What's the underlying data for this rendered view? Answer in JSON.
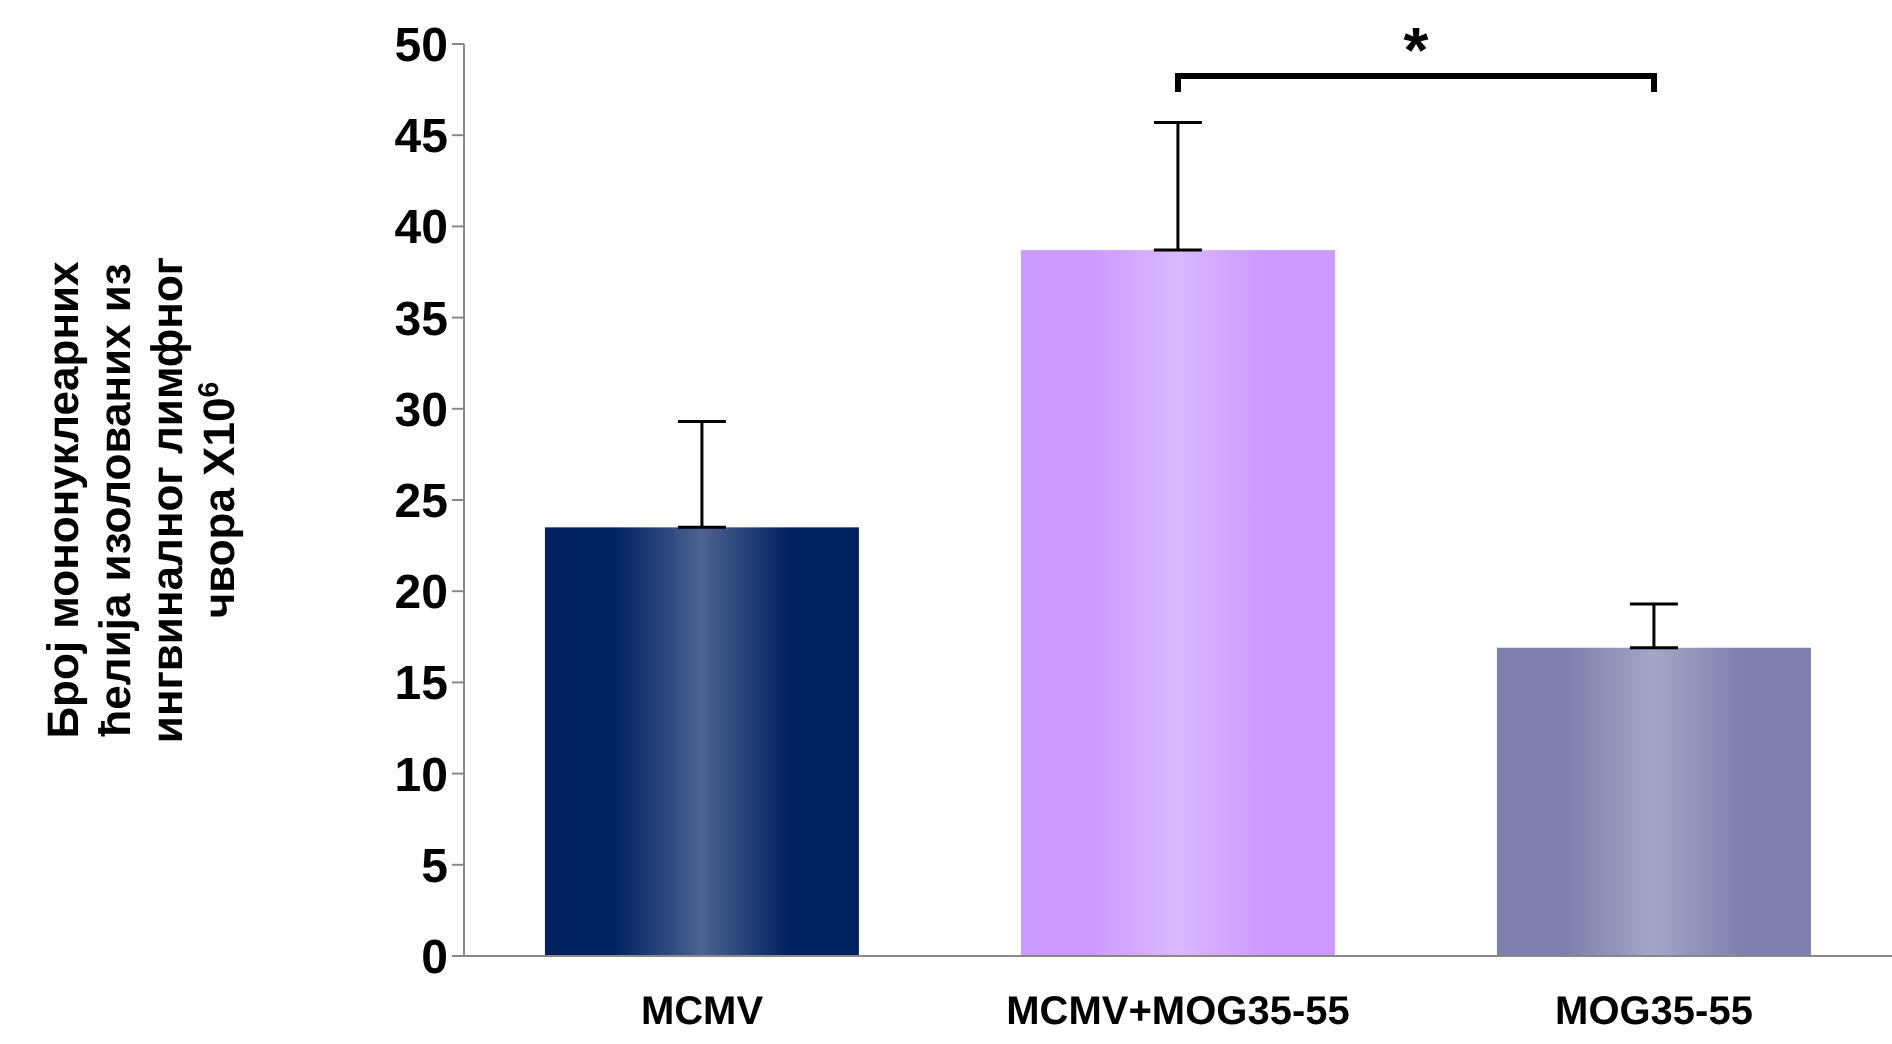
{
  "chart_data": {
    "type": "bar",
    "ylabel": "Број мононуклеарних ћелија изолованих из ингвиналног лимфног чвора X10$^{6}$",
    "categories": [
      "MCMV",
      "MCMV+MOG35-55",
      "MOG35-55"
    ],
    "values": [
      23.5,
      38.7,
      16.9
    ],
    "colors": [
      "#002060",
      "#cc99ff",
      "#7f7fad"
    ],
    "errors": [
      [
        23.5,
        29.3
      ],
      [
        38.7,
        45.7
      ],
      [
        16.9,
        19.3
      ]
    ],
    "ylim": [
      0,
      50
    ],
    "yticks": [
      0,
      5,
      10,
      15,
      20,
      25,
      30,
      35,
      40,
      45,
      50
    ],
    "annotations": [
      "*"
    ]
  }
}
